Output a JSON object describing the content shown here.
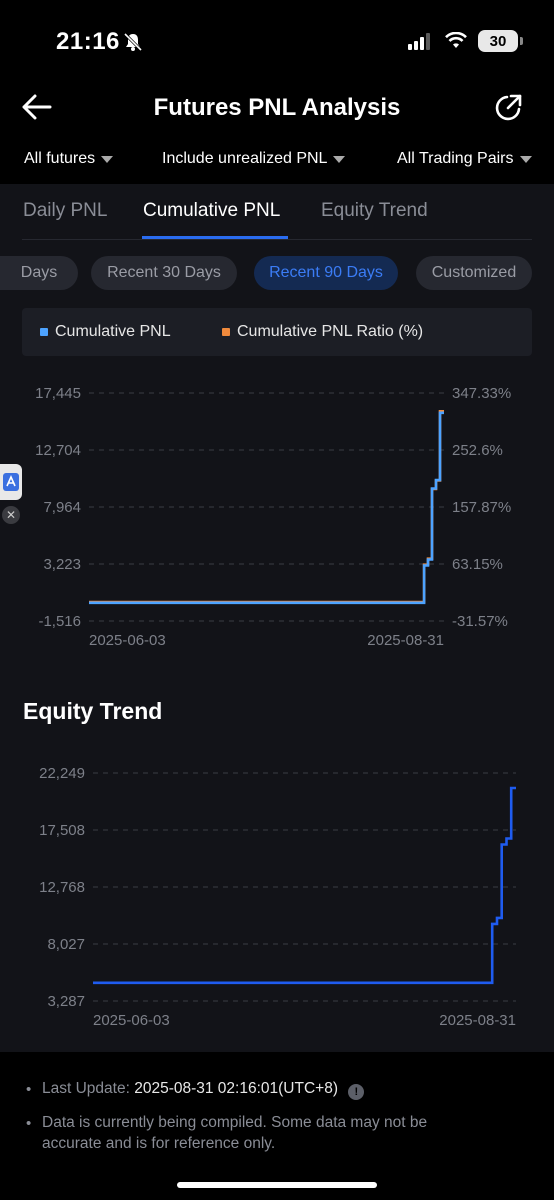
{
  "status_bar": {
    "time": "21:16",
    "battery": "30"
  },
  "header": {
    "title": "Futures PNL Analysis"
  },
  "filters": [
    {
      "label": "All futures"
    },
    {
      "label": "Include unrealized PNL"
    },
    {
      "label": "All Trading Pairs"
    }
  ],
  "tabs": [
    {
      "label": "Daily PNL"
    },
    {
      "label": "Cumulative PNL"
    },
    {
      "label": "Equity Trend"
    }
  ],
  "active_tab": "Cumulative PNL",
  "chips": [
    {
      "label": "Days"
    },
    {
      "label": "Recent 30 Days"
    },
    {
      "label": "Recent 90 Days"
    },
    {
      "label": "Customized"
    }
  ],
  "active_chip": "Recent 90 Days",
  "legend": [
    {
      "label": "Cumulative PNL",
      "color": "#4da3ff"
    },
    {
      "label": "Cumulative PNL Ratio (%)",
      "color": "#f08a3c"
    }
  ],
  "equity_section": {
    "title": "Equity Trend"
  },
  "footer": {
    "last_update_label": "Last Update:",
    "last_update_value": "2025-08-31 02:16:01(UTC+8)",
    "note": "Data is currently being compiled. Some data may not be accurate and is for reference only.",
    "note_line1": "Data is currently being compiled. Some data may not be",
    "note_line2": "accurate and is for reference only."
  },
  "colors": {
    "accent": "#2a6cf0",
    "pnl": "#4da3ff",
    "ratio": "#f08a3c",
    "equity": "#1f5cf0"
  },
  "chart_data": [
    {
      "type": "line",
      "title": "",
      "x_ticks": [
        "2025-06-03",
        "2025-08-31"
      ],
      "y_left_ticks": [
        "17,445",
        "12,704",
        "7,964",
        "3,223",
        "-1,516"
      ],
      "y_right_ticks": [
        "347.33%",
        "252.6%",
        "157.87%",
        "63.15%",
        "-31.57%"
      ],
      "ylim_left": [
        -1516,
        17445
      ],
      "ylim_right": [
        -31.57,
        347.33
      ],
      "grid": true,
      "series": [
        {
          "name": "Cumulative PNL",
          "axis": "left",
          "x": [
            "2025-06-03",
            "2025-08-24",
            "2025-08-25",
            "2025-08-26",
            "2025-08-27",
            "2025-08-28",
            "2025-08-29",
            "2025-08-30",
            "2025-08-31"
          ],
          "values": [
            0,
            0,
            0,
            3100,
            3600,
            9500,
            10200,
            15800,
            15800
          ]
        },
        {
          "name": "Cumulative PNL Ratio (%)",
          "axis": "right",
          "x": [
            "2025-06-03",
            "2025-08-24",
            "2025-08-25",
            "2025-08-26",
            "2025-08-27",
            "2025-08-28",
            "2025-08-29",
            "2025-08-30",
            "2025-08-31"
          ],
          "values": [
            0,
            0,
            0,
            62,
            72,
            188,
            202,
            317,
            317
          ]
        }
      ]
    },
    {
      "type": "line",
      "title": "Equity Trend",
      "x_ticks": [
        "2025-06-03",
        "2025-08-31"
      ],
      "y_ticks": [
        "22,249",
        "17,508",
        "12,768",
        "8,027",
        "3,287"
      ],
      "ylim": [
        3287,
        22249
      ],
      "grid": true,
      "series": [
        {
          "name": "",
          "x": [
            "2025-06-03",
            "2025-08-24",
            "2025-08-25",
            "2025-08-26",
            "2025-08-27",
            "2025-08-28",
            "2025-08-29",
            "2025-08-30",
            "2025-08-31"
          ],
          "values": [
            4800,
            4800,
            4800,
            9700,
            10200,
            16300,
            16800,
            21000,
            21000
          ]
        }
      ]
    }
  ]
}
